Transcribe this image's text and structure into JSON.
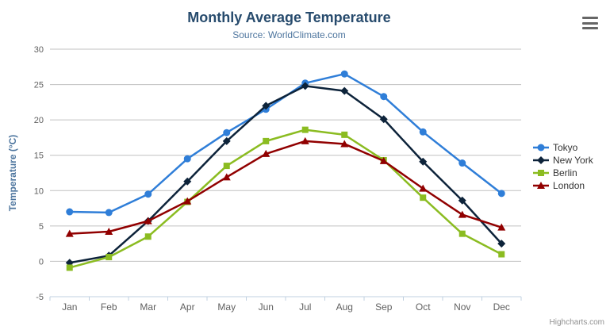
{
  "header": {
    "menu_icon": "hamburger-icon"
  },
  "chart_data": {
    "type": "line",
    "title": "Monthly Average Temperature",
    "subtitle": "Source: WorldClimate.com",
    "categories": [
      "Jan",
      "Feb",
      "Mar",
      "Apr",
      "May",
      "Jun",
      "Jul",
      "Aug",
      "Sep",
      "Oct",
      "Nov",
      "Dec"
    ],
    "xlabel": "",
    "ylabel": "Temperature (°C)",
    "ylim": [
      -5,
      30
    ],
    "yticks": [
      -5,
      0,
      5,
      10,
      15,
      20,
      25,
      30
    ],
    "grid": true,
    "legend_position": "right",
    "series": [
      {
        "name": "Tokyo",
        "color": "#2f7ed8",
        "marker": "circle",
        "values": [
          7.0,
          6.9,
          9.5,
          14.5,
          18.2,
          21.5,
          25.2,
          26.5,
          23.3,
          18.3,
          13.9,
          9.6
        ]
      },
      {
        "name": "New York",
        "color": "#0d233a",
        "marker": "diamond",
        "values": [
          -0.2,
          0.8,
          5.7,
          11.3,
          17.0,
          22.0,
          24.8,
          24.1,
          20.1,
          14.1,
          8.6,
          2.5
        ]
      },
      {
        "name": "Berlin",
        "color": "#8bbc21",
        "marker": "square",
        "values": [
          -0.9,
          0.6,
          3.5,
          8.4,
          13.5,
          17.0,
          18.6,
          17.9,
          14.3,
          9.0,
          3.9,
          1.0
        ]
      },
      {
        "name": "London",
        "color": "#910000",
        "marker": "triangle",
        "values": [
          3.9,
          4.2,
          5.7,
          8.5,
          11.9,
          15.2,
          17.0,
          16.6,
          14.2,
          10.3,
          6.6,
          4.8
        ]
      }
    ],
    "axis_colors": {
      "grid": "#c0c0c0",
      "axis_line": "#c0d0e0",
      "tick_label": "#606060",
      "axis_title": "#4d759e"
    }
  },
  "credits": {
    "label": "Highcharts.com"
  }
}
